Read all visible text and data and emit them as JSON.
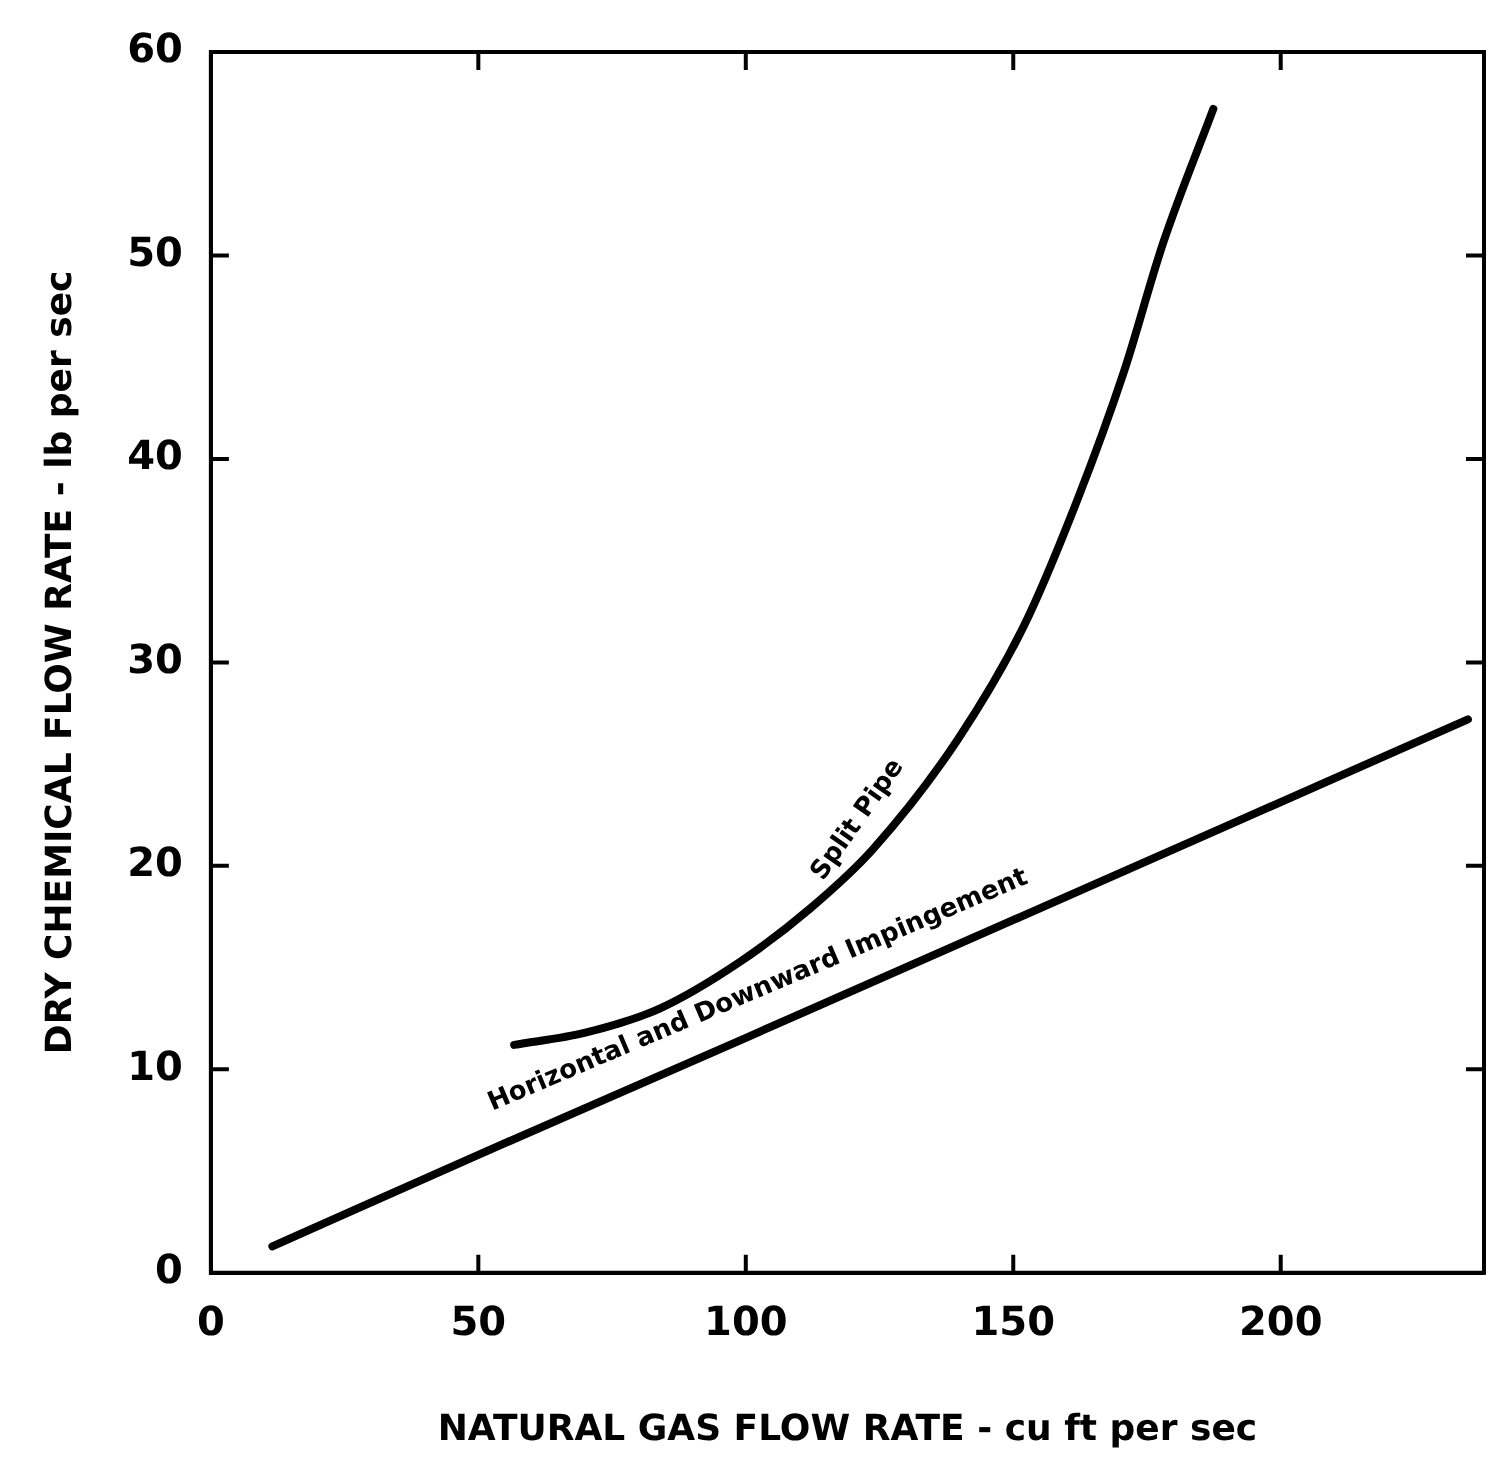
{
  "chart_data": {
    "type": "line",
    "xlabel": "NATURAL GAS FLOW RATE - cu ft per sec",
    "ylabel": "DRY CHEMICAL FLOW RATE - lb per sec",
    "xlim": [
      0,
      238
    ],
    "ylim": [
      0,
      60
    ],
    "xticks": [
      0,
      50,
      100,
      150,
      200
    ],
    "yticks": [
      0,
      10,
      20,
      30,
      40,
      50,
      60
    ],
    "grid": false,
    "legend": false,
    "marker": "none",
    "line_style": "solid",
    "series": [
      {
        "color": "#000000",
        "x": [
          56.7,
          70,
          84,
          99,
          112,
          123.7,
          139.6,
          152,
          162,
          170.7,
          178,
          187.4
        ],
        "values": [
          11.2,
          11.8,
          13,
          15.3,
          17.9,
          20.8,
          26.2,
          31.8,
          38,
          44.3,
          50.6,
          57.2
        ]
      },
      {
        "color": "#000000",
        "x": [
          11.5,
          50,
          99.6,
          235
        ],
        "values": [
          1.3,
          5.8,
          11.5,
          27.2
        ]
      }
    ],
    "annotations": [
      {
        "text": "Split Pipe",
        "x": 123.7,
        "y": 20.8
      },
      {
        "text": "Horizontal and Downward Impingement",
        "x": 105,
        "y": 12.2
      }
    ]
  }
}
